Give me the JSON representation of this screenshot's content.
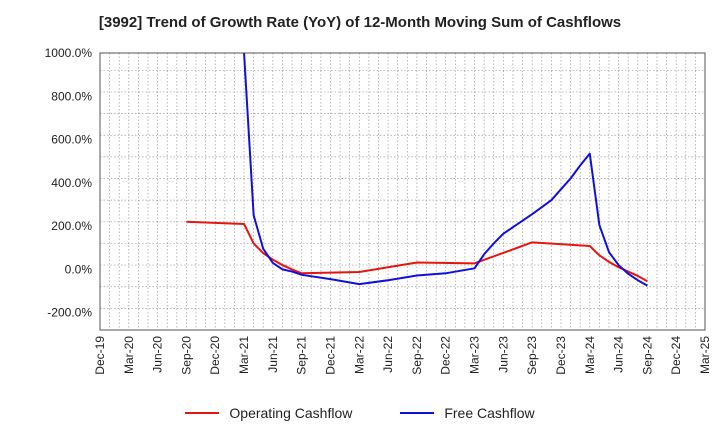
{
  "chart_data": {
    "type": "line",
    "title": "[3992]  Trend of Growth Rate (YoY) of 12-Month Moving Sum of Cashflows",
    "xlabel": "",
    "ylabel": "",
    "ylim": [
      -280,
      1000
    ],
    "yticks": [
      1000,
      800,
      600,
      400,
      200,
      0,
      -200
    ],
    "ytick_labels": [
      "1000.0%",
      "800.0%",
      "600.0%",
      "400.0%",
      "200.0%",
      "0.0%",
      "-200.0%"
    ],
    "x_tick_labels": [
      "Dec-19",
      "Mar-20",
      "Jun-20",
      "Sep-20",
      "Dec-20",
      "Mar-21",
      "Jun-21",
      "Sep-21",
      "Dec-21",
      "Mar-22",
      "Jun-22",
      "Sep-22",
      "Dec-22",
      "Mar-23",
      "Jun-23",
      "Sep-23",
      "Dec-23",
      "Mar-24",
      "Jun-24",
      "Sep-24",
      "Dec-24",
      "Mar-25"
    ],
    "grid": true,
    "legend_position": "bottom",
    "series": [
      {
        "name": "Operating Cashflow",
        "color": "#e8140f",
        "points": [
          [
            "Sep-20",
            220
          ],
          [
            "Mar-21",
            210
          ],
          [
            "Apr-21",
            120
          ],
          [
            "May-21",
            75
          ],
          [
            "Jun-21",
            45
          ],
          [
            "Jul-21",
            20
          ],
          [
            "Aug-21",
            0
          ],
          [
            "Sep-21",
            -18
          ],
          [
            "Mar-22",
            -12
          ],
          [
            "Jun-22",
            10
          ],
          [
            "Sep-22",
            32
          ],
          [
            "Mar-23",
            28
          ],
          [
            "Sep-23",
            125
          ],
          [
            "Mar-24",
            108
          ],
          [
            "Apr-24",
            65
          ],
          [
            "May-24",
            35
          ],
          [
            "Jun-24",
            10
          ],
          [
            "Jul-24",
            -10
          ],
          [
            "Aug-24",
            -30
          ],
          [
            "Sep-24",
            -55
          ]
        ]
      },
      {
        "name": "Free Cashflow",
        "color": "#1010dd",
        "points": [
          [
            "Mar-21",
            1000
          ],
          [
            "Apr-21",
            250
          ],
          [
            "May-21",
            95
          ],
          [
            "Jun-21",
            30
          ],
          [
            "Jul-21",
            0
          ],
          [
            "Aug-21",
            -10
          ],
          [
            "Sep-21",
            -25
          ],
          [
            "Dec-21",
            -45
          ],
          [
            "Mar-22",
            -68
          ],
          [
            "Jun-22",
            -50
          ],
          [
            "Sep-22",
            -28
          ],
          [
            "Dec-22",
            -18
          ],
          [
            "Mar-23",
            5
          ],
          [
            "Apr-23",
            70
          ],
          [
            "May-23",
            120
          ],
          [
            "Jun-23",
            165
          ],
          [
            "Aug-23",
            225
          ],
          [
            "Sep-23",
            255
          ],
          [
            "Nov-23",
            320
          ],
          [
            "Dec-23",
            370
          ],
          [
            "Jan-24",
            420
          ],
          [
            "Feb-24",
            480
          ],
          [
            "Mar-24",
            535
          ],
          [
            "Apr-24",
            205
          ],
          [
            "May-24",
            80
          ],
          [
            "Jun-24",
            20
          ],
          [
            "Jul-24",
            -20
          ],
          [
            "Aug-24",
            -50
          ],
          [
            "Sep-24",
            -75
          ]
        ]
      }
    ]
  }
}
